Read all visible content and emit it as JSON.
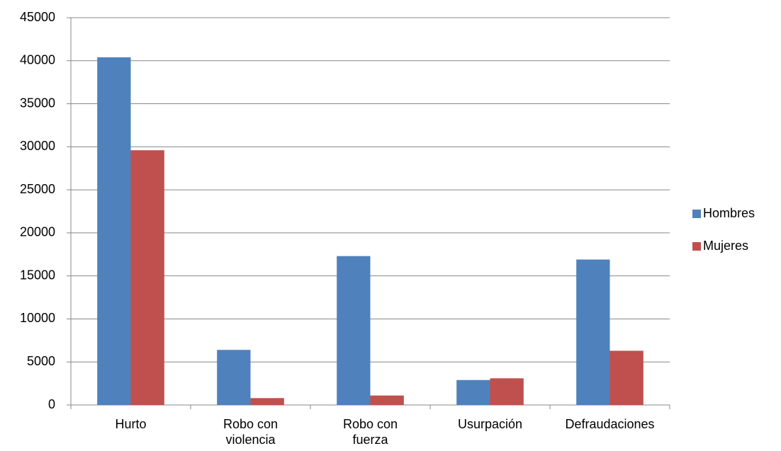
{
  "chart_data": {
    "type": "bar",
    "categories": [
      "Hurto",
      "Robo con violencia",
      "Robo con fuerza",
      "Usurpación",
      "Defraudaciones"
    ],
    "series": [
      {
        "name": "Hombres",
        "color": "#4f81bd",
        "values": [
          40400,
          6400,
          17300,
          2900,
          16900
        ]
      },
      {
        "name": "Mujeres",
        "color": "#c0504d",
        "values": [
          29600,
          800,
          1100,
          3100,
          6300
        ]
      }
    ],
    "ylim": [
      0,
      45000
    ],
    "yticks": [
      0,
      5000,
      10000,
      15000,
      20000,
      25000,
      30000,
      35000,
      40000,
      45000
    ],
    "grid": true,
    "legend": "right"
  }
}
